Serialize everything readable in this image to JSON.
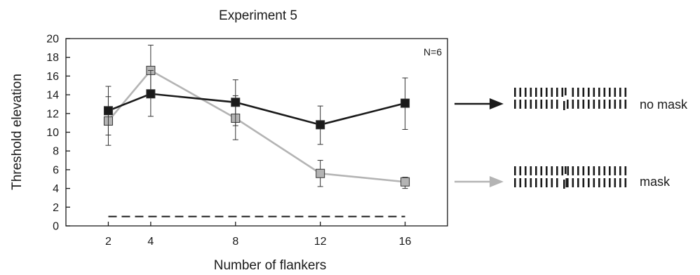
{
  "chart_data": {
    "type": "line",
    "title": "Experiment 5",
    "xlabel": "Number of flankers",
    "ylabel": "Threshold elevation",
    "xlim": [
      0,
      18
    ],
    "ylim": [
      0,
      20
    ],
    "x_ticks": [
      2,
      4,
      8,
      12,
      16
    ],
    "y_ticks": [
      0,
      2,
      4,
      6,
      8,
      10,
      12,
      14,
      16,
      18,
      20
    ],
    "annotation": "N=6",
    "grid": false,
    "baseline": {
      "y": 1,
      "x_range": [
        2,
        16
      ],
      "style": "dashed"
    },
    "series": [
      {
        "name": "no mask",
        "color": "#1a1a1a",
        "x": [
          2,
          4,
          8,
          12,
          16
        ],
        "y": [
          12.3,
          14.1,
          13.2,
          10.8,
          13.1
        ],
        "err_low": [
          9.7,
          11.7,
          10.7,
          8.7,
          10.3
        ],
        "err_high": [
          14.9,
          16.6,
          15.6,
          12.8,
          15.8
        ]
      },
      {
        "name": "mask",
        "color": "#b4b4b4",
        "x": [
          2,
          4,
          8,
          12,
          16
        ],
        "y": [
          11.2,
          16.6,
          11.5,
          5.6,
          4.7
        ],
        "err_low": [
          8.6,
          14.0,
          9.2,
          4.2,
          4.0
        ],
        "err_high": [
          13.8,
          19.3,
          13.9,
          7.0,
          5.2
        ]
      }
    ]
  }
}
